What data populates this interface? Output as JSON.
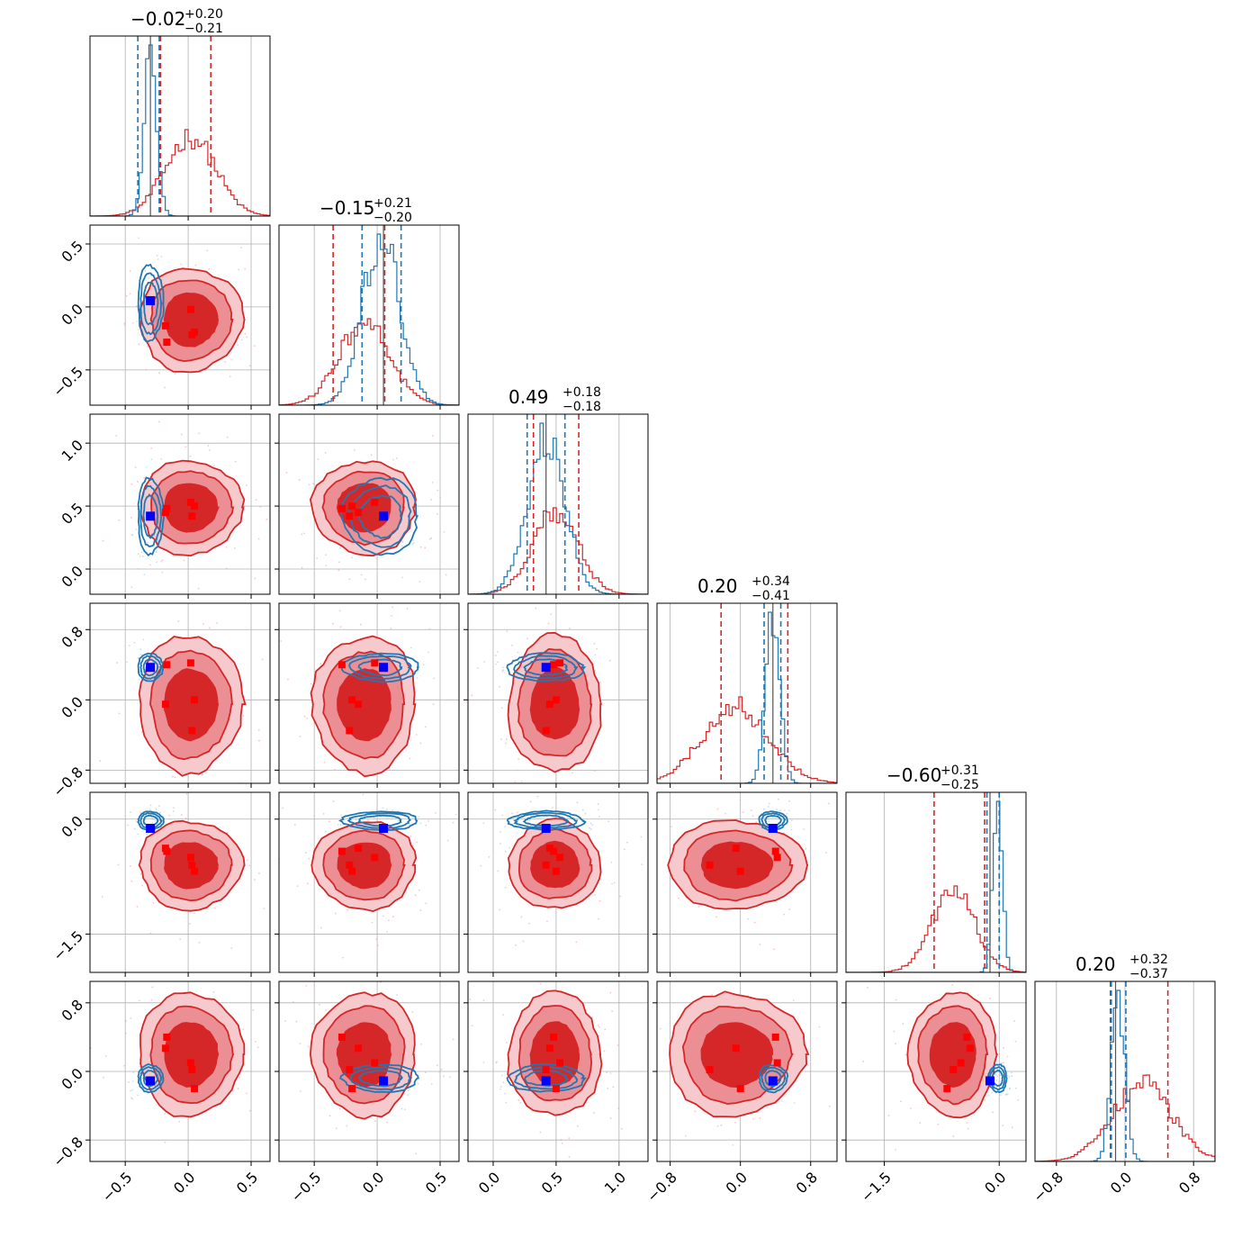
{
  "chart_data": {
    "type": "corner",
    "n_params": 6,
    "grid": true,
    "colors": {
      "series_a": "#d62728",
      "series_b": "#1f77b4",
      "true_marker": "#0000ff",
      "sample_marker": "#ff0000"
    },
    "ranges": [
      [
        -0.78,
        0.65
      ],
      [
        -0.78,
        0.65
      ],
      [
        -0.2,
        1.23
      ],
      [
        -0.95,
        1.1
      ],
      [
        -2.0,
        0.35
      ],
      [
        -1.05,
        1.05
      ]
    ],
    "ticks": [
      [
        {
          "v": -0.5,
          "label": "−0.5"
        },
        {
          "v": 0.0,
          "label": "0.0"
        },
        {
          "v": 0.5,
          "label": "0.5"
        }
      ],
      [
        {
          "v": -0.5,
          "label": "−0.5"
        },
        {
          "v": 0.0,
          "label": "0.0"
        },
        {
          "v": 0.5,
          "label": "0.5"
        }
      ],
      [
        {
          "v": 0.0,
          "label": "0.0"
        },
        {
          "v": 0.5,
          "label": "0.5"
        },
        {
          "v": 1.0,
          "label": "1.0"
        }
      ],
      [
        {
          "v": -0.8,
          "label": "−0.8"
        },
        {
          "v": 0.0,
          "label": "0.0"
        },
        {
          "v": 0.8,
          "label": "0.8"
        }
      ],
      [
        {
          "v": -1.5,
          "label": "−1.5"
        },
        {
          "v": 0.0,
          "label": "0.0"
        }
      ],
      [
        {
          "v": -0.8,
          "label": "−0.8"
        },
        {
          "v": 0.0,
          "label": "0.0"
        },
        {
          "v": 0.8,
          "label": "0.8"
        }
      ]
    ],
    "titles": [
      {
        "main": "−0.02",
        "sup": "+0.20",
        "sub": "−0.21"
      },
      {
        "main": "−0.15",
        "sup": "+0.21",
        "sub": "−0.20"
      },
      {
        "main": "0.49",
        "sup": "+0.18",
        "sub": "−0.18"
      },
      {
        "main": "0.20",
        "sup": "+0.34",
        "sub": "−0.41"
      },
      {
        "main": "−0.60",
        "sup": "+0.31",
        "sub": "−0.25"
      },
      {
        "main": "0.20",
        "sup": "+0.32",
        "sub": "−0.37"
      }
    ],
    "series_a": {
      "mean": [
        0.02,
        -0.1,
        0.49,
        -0.05,
        -0.6,
        0.2
      ],
      "std": [
        0.2,
        0.2,
        0.18,
        0.38,
        0.28,
        0.35
      ],
      "quantiles": [
        [
          -0.22,
          0.18
        ],
        [
          -0.35,
          0.06
        ],
        [
          0.32,
          0.68
        ],
        [
          -0.22,
          0.54
        ],
        [
          -0.85,
          -0.19
        ],
        [
          -0.17,
          0.5
        ]
      ]
    },
    "series_b": {
      "mean": [
        -0.3,
        0.03,
        0.42,
        0.37,
        -0.02,
        -0.08
      ],
      "std": [
        0.05,
        0.15,
        0.15,
        0.08,
        0.06,
        0.08
      ],
      "quantiles": [
        [
          -0.4,
          -0.23
        ],
        [
          -0.12,
          0.19
        ],
        [
          0.27,
          0.57
        ],
        [
          0.27,
          0.46
        ],
        [
          -0.16,
          0.0
        ],
        [
          -0.16,
          0.01
        ]
      ]
    },
    "true_point": [
      -0.3,
      0.05,
      0.42,
      0.37,
      -0.12,
      -0.11
    ],
    "sample_points": [
      [
        -0.18,
        -0.15,
        0.45,
        -0.05,
        -0.38,
        0.27
      ],
      [
        0.03,
        -0.22,
        0.42,
        -0.35,
        -0.6,
        0.02
      ],
      [
        0.02,
        -0.02,
        0.53,
        0.42,
        -0.5,
        0.1
      ],
      [
        -0.17,
        -0.28,
        0.48,
        0.4,
        -0.42,
        0.4
      ],
      [
        0.05,
        -0.2,
        0.5,
        0.0,
        -0.68,
        -0.2
      ]
    ]
  }
}
